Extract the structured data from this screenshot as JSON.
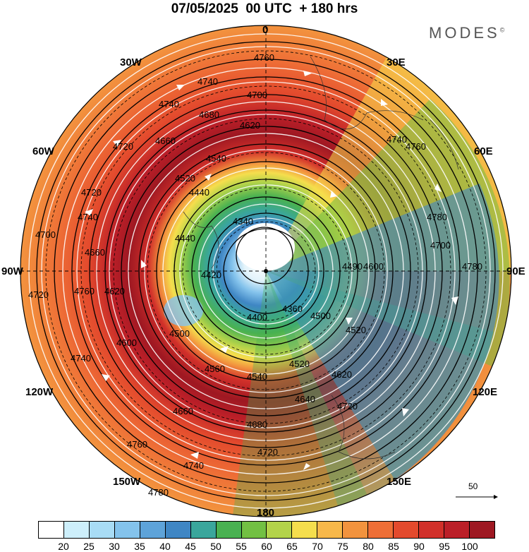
{
  "title": "07/05/2025  00 UTC  + 180 hrs",
  "brand": "MODES",
  "brand_mark": "©",
  "longitude_labels": {
    "n0": "0",
    "e30": "30E",
    "e60": "60E",
    "e90": "90E",
    "e120": "120E",
    "e150": "150E",
    "s180": "180",
    "w150": "150W",
    "w120": "120W",
    "w90": "90W",
    "w60": "60W",
    "w30": "30W"
  },
  "contour_labels": [
    "4760",
    "4740",
    "4740",
    "4700",
    "4680",
    "4620",
    "4720",
    "4660",
    "4540",
    "4520",
    "4440",
    "4340",
    "4720",
    "4740",
    "4740",
    "4760",
    "4780",
    "4780",
    "4700",
    "4600",
    "4490",
    "4520",
    "4500",
    "4360",
    "4400",
    "4420",
    "4440",
    "4500",
    "4560",
    "4540",
    "4520",
    "4620",
    "4640",
    "4660",
    "4680",
    "4720",
    "4740",
    "4760",
    "4780",
    "4720",
    "4600",
    "4620",
    "4660",
    "4700",
    "4760",
    "4720",
    "4740"
  ],
  "reference_vector": "50",
  "colorbar": {
    "colors": [
      "#ffffff",
      "#cdeffb",
      "#a8dcf5",
      "#84c3ec",
      "#5ea3d9",
      "#3f86c4",
      "#3aa69c",
      "#49b151",
      "#72c043",
      "#b3d34a",
      "#f5de4d",
      "#f7b84a",
      "#f2933e",
      "#ee6e36",
      "#e34a2d",
      "#d1302a",
      "#bb1f28",
      "#9e1822"
    ],
    "ticks": [
      "20",
      "25",
      "30",
      "35",
      "40",
      "45",
      "50",
      "55",
      "60",
      "65",
      "70",
      "75",
      "80",
      "85",
      "90",
      "95",
      "100"
    ]
  }
}
